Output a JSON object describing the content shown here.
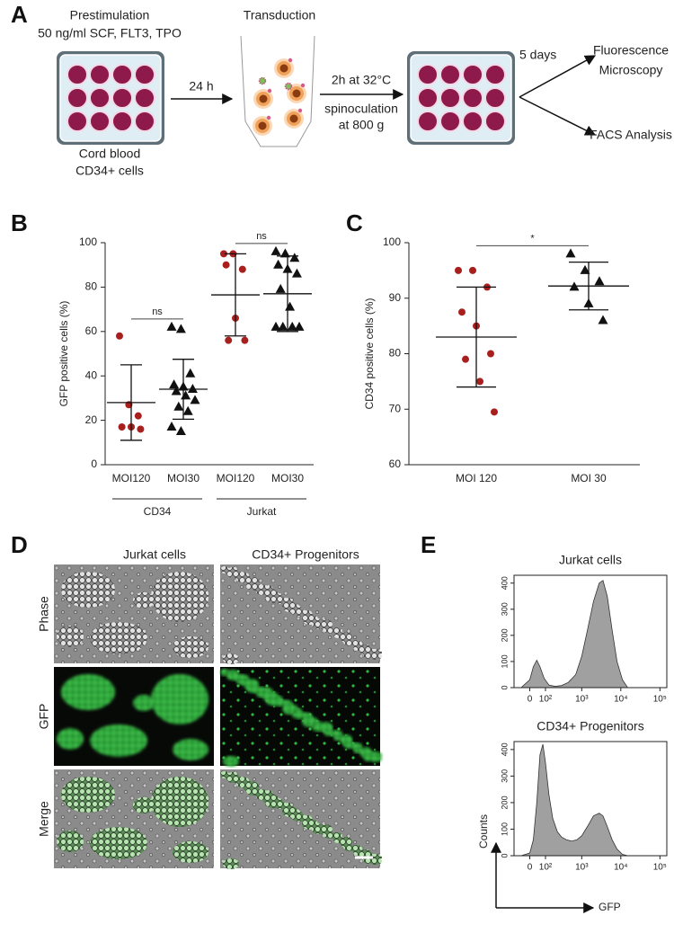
{
  "figure": {
    "panel_labels": [
      "A",
      "B",
      "C",
      "D",
      "E"
    ],
    "schematic": {
      "prestimulation": "Prestimulation",
      "cytokines": "50 ng/ml SCF, FLT3, TPO",
      "cells_line1": "Cord blood",
      "cells_line2": "CD34+ cells",
      "step1": "24 h",
      "transduction": "Transduction",
      "step2_line1": "2h at 32°C",
      "step2_line2": "spinoculation",
      "step2_line3": "at 800 g",
      "step3": "5 days",
      "readout1_line1": "Fluorescence",
      "readout1_line2": "Microscopy",
      "readout2": "FACS Analysis"
    },
    "microscopy": {
      "columns": [
        "Jurkat cells",
        "CD34+ Progenitors"
      ],
      "rows": [
        "Phase",
        "GFP",
        "Merge"
      ]
    }
  },
  "chart_data": [
    {
      "type": "dot",
      "ylabel": "GFP positive cells (%)",
      "ylim": [
        0,
        100
      ],
      "yticks": [
        0,
        20,
        40,
        60,
        80,
        100
      ],
      "categories": [
        "MOI120",
        "MOI30",
        "MOI120",
        "MOI30"
      ],
      "groups": [
        "CD34",
        "Jurkat"
      ],
      "annotations": [
        "ns",
        "ns"
      ],
      "markers": [
        "circle",
        "triangle",
        "circle",
        "triangle"
      ],
      "colors": [
        "#a8201e",
        "#111111",
        "#a8201e",
        "#111111"
      ],
      "values": [
        [
          58,
          27,
          22,
          17,
          17,
          16
        ],
        [
          62,
          61,
          41,
          36,
          35,
          34,
          33,
          31,
          29,
          26,
          24,
          17,
          15
        ],
        [
          95,
          95,
          88,
          90,
          66,
          56,
          56
        ],
        [
          96,
          95,
          93,
          90,
          88,
          86,
          79,
          71,
          62,
          62,
          62,
          62
        ]
      ],
      "means": [
        28,
        34,
        76.5,
        77
      ],
      "sds": [
        17,
        13.5,
        18.5,
        17
      ]
    },
    {
      "type": "dot",
      "ylabel": "CD34 positive cells (%)",
      "ylim": [
        60,
        100
      ],
      "yticks": [
        60,
        70,
        80,
        90,
        100
      ],
      "categories": [
        "MOI 120",
        "MOI 30"
      ],
      "annotations": [
        "*"
      ],
      "markers": [
        "circle",
        "triangle"
      ],
      "colors": [
        "#a8201e",
        "#111111"
      ],
      "values": [
        [
          95,
          95,
          92,
          87.5,
          85,
          80,
          79,
          75,
          69.5
        ],
        [
          98,
          95,
          93,
          92,
          89,
          86
        ]
      ],
      "means": [
        83,
        92.2
      ],
      "sds": [
        9,
        4.3
      ]
    },
    {
      "type": "area",
      "title": "Jurkat cells",
      "xscale": "biexponential",
      "color": "#a0a0a0",
      "xlim": [
        -100,
        150000
      ],
      "xticks": [
        0,
        {
          "value": 100,
          "label": "10²"
        },
        {
          "value": 1000,
          "label": "10³"
        },
        {
          "value": 10000,
          "label": "10⁴"
        },
        {
          "value": 100000,
          "label": "10⁵"
        }
      ],
      "ylim": [
        0,
        430
      ],
      "yticks": [
        0,
        100,
        200,
        300,
        400
      ],
      "x": [
        -50,
        0,
        20,
        40,
        60,
        90,
        130,
        200,
        300,
        450,
        700,
        1000,
        1400,
        2000,
        2800,
        3500,
        4500,
        6000,
        8000,
        11000,
        15000
      ],
      "values": [
        0,
        30,
        80,
        105,
        80,
        35,
        10,
        5,
        8,
        20,
        50,
        120,
        220,
        330,
        400,
        410,
        350,
        220,
        100,
        30,
        0
      ]
    },
    {
      "type": "area",
      "title": "CD34+ Progenitors",
      "xlabel": "GFP",
      "ylabel": "Counts",
      "xscale": "biexponential",
      "color": "#a0a0a0",
      "xlim": [
        -100,
        150000
      ],
      "xticks": [
        0,
        {
          "value": 100,
          "label": "10²"
        },
        {
          "value": 1000,
          "label": "10³"
        },
        {
          "value": 10000,
          "label": "10⁴"
        },
        {
          "value": 100000,
          "label": "10⁵"
        }
      ],
      "ylim": [
        0,
        430
      ],
      "yticks": [
        0,
        100,
        200,
        300,
        400
      ],
      "x": [
        -50,
        0,
        20,
        40,
        60,
        80,
        100,
        130,
        170,
        230,
        300,
        400,
        550,
        750,
        1000,
        1400,
        2000,
        2800,
        3500,
        4500,
        6000,
        8000,
        11000,
        15000
      ],
      "values": [
        0,
        10,
        60,
        200,
        380,
        420,
        350,
        230,
        140,
        90,
        70,
        60,
        55,
        60,
        75,
        110,
        150,
        160,
        150,
        110,
        60,
        25,
        5,
        0
      ]
    }
  ]
}
